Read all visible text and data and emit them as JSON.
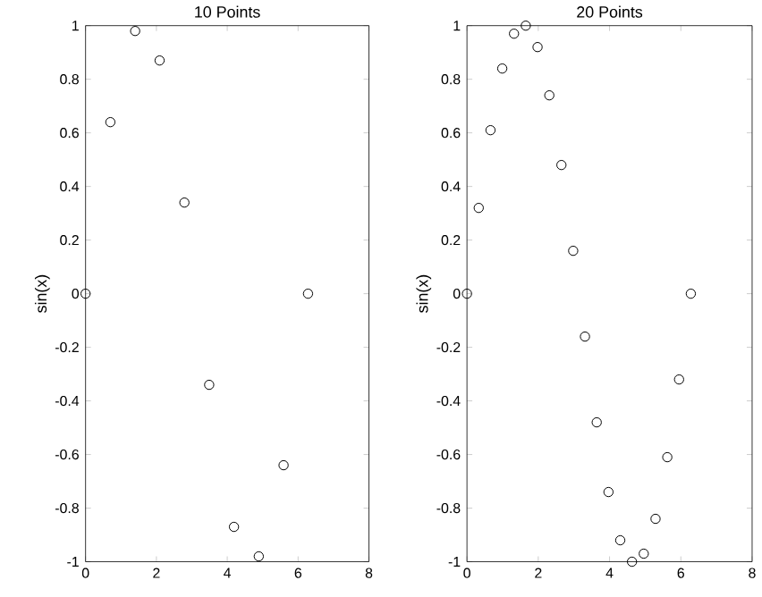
{
  "chart_data": [
    {
      "type": "scatter",
      "title": "10 Points",
      "ylabel": "sin(x)",
      "marker": "circle",
      "color": "#000000",
      "x": [
        0,
        0.7,
        1.4,
        2.09,
        2.79,
        3.49,
        4.19,
        4.89,
        5.59,
        6.28
      ],
      "values": [
        0,
        0.64,
        0.98,
        0.87,
        0.34,
        -0.34,
        -0.87,
        -0.98,
        -0.64,
        0
      ],
      "xlim": [
        0,
        8
      ],
      "ylim": [
        -1,
        1
      ],
      "xticks": [
        0,
        2,
        4,
        6,
        8
      ],
      "yticks": [
        -1,
        -0.8,
        -0.6,
        -0.4,
        -0.2,
        0,
        0.2,
        0.4,
        0.6,
        0.8,
        1
      ],
      "grid": false
    },
    {
      "type": "scatter",
      "title": "20 Points",
      "ylabel": "sin(x)",
      "marker": "circle",
      "color": "#000000",
      "x": [
        0,
        0.33,
        0.66,
        0.99,
        1.32,
        1.65,
        1.98,
        2.31,
        2.65,
        2.98,
        3.31,
        3.64,
        3.97,
        4.3,
        4.63,
        4.96,
        5.29,
        5.62,
        5.95,
        6.28
      ],
      "values": [
        0,
        0.32,
        0.61,
        0.84,
        0.97,
        1.0,
        0.92,
        0.74,
        0.48,
        0.16,
        -0.16,
        -0.48,
        -0.74,
        -0.92,
        -1.0,
        -0.97,
        -0.84,
        -0.61,
        -0.32,
        0
      ],
      "xlim": [
        0,
        8
      ],
      "ylim": [
        -1,
        1
      ],
      "xticks": [
        0,
        2,
        4,
        6,
        8
      ],
      "yticks": [
        -1,
        -0.8,
        -0.6,
        -0.4,
        -0.2,
        0,
        0.2,
        0.4,
        0.6,
        0.8,
        1
      ],
      "grid": false
    }
  ]
}
